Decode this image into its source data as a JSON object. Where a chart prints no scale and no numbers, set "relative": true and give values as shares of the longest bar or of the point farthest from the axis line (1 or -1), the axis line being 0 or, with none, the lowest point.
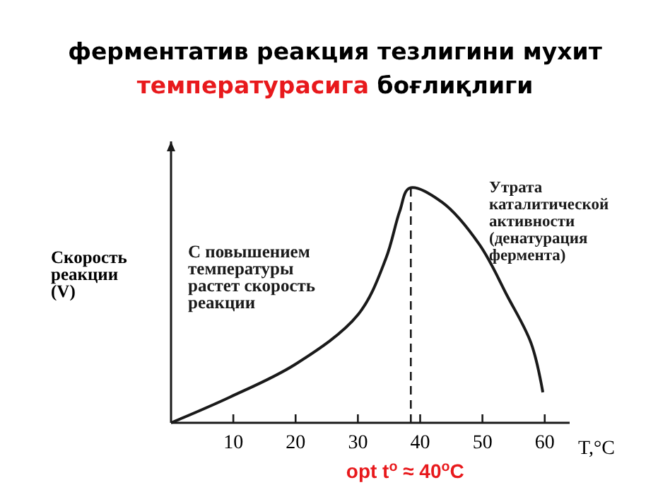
{
  "chart_data": {
    "type": "line",
    "title": "ферментатив реакция тезлигини мухит температурасига боғлиқлиги",
    "xlabel": "T,°C",
    "ylabel": "Скорость\nреакции\n(V)",
    "relative": true,
    "xlim": [
      0,
      64
    ],
    "xticks": [
      10,
      20,
      30,
      40,
      50,
      60
    ],
    "grid": false,
    "marker": "none",
    "line_style": "solid",
    "series": [
      {
        "color": "#1a1a1a",
        "x": [
          0,
          9.5,
          20,
          30,
          34.5,
          36.7,
          38.3,
          43.5,
          49.5,
          54,
          57.8,
          59.7
        ],
        "values": [
          0,
          0.11,
          0.25,
          0.46,
          0.7,
          0.9,
          1,
          0.94,
          0.76,
          0.54,
          0.34,
          0.13
        ]
      }
    ],
    "ref_lines": [
      {
        "axis": "x",
        "value": 38.5,
        "line_style": "dashed",
        "color": "#1a1a1a"
      }
    ],
    "annotations": [
      "С повышением\nтемпературы\nрастет скорость\nреакции",
      "Утрата\nкаталитической\nактивности\n(денатурация\nфермента)",
      "opt t$^{o}$ ≈ 40$^{o}$C"
    ]
  }
}
